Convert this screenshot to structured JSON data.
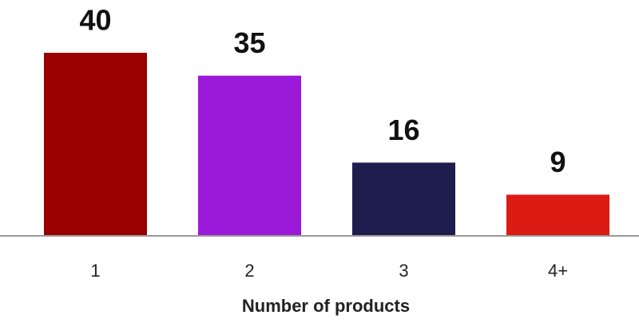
{
  "chart_data": {
    "type": "bar",
    "x_label": "Number of products",
    "categories": [
      "1",
      "2",
      "3",
      "4+"
    ],
    "values": [
      40,
      35,
      16,
      9
    ],
    "colors": [
      "#9b0000",
      "#9b19d9",
      "#1f1c4e",
      "#dc1a14"
    ]
  }
}
